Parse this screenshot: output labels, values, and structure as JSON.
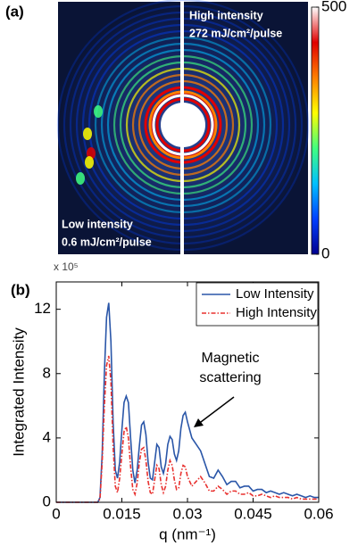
{
  "chart_data": [
    {
      "type": "image",
      "label": "(a)",
      "annotations": [
        [
          "High intensity",
          "272 mJ/cm²/pulse"
        ],
        [
          "Low intensity",
          "0.6 mJ/cm²/pulse"
        ]
      ],
      "clim": [
        0,
        500
      ],
      "cticks": [
        0,
        500
      ],
      "colormap": [
        "#00008f",
        "#0040ff",
        "#00c0ff",
        "#40ff80",
        "#ffff00",
        "#ff8000",
        "#e00000",
        "#ffffff"
      ]
    },
    {
      "type": "line",
      "label": "(b)",
      "multiplier": "x 10⁵",
      "ylabel": "Integrated Intensity",
      "xlabel": "q (nm⁻¹)",
      "annotation": [
        "Magnetic",
        "scattering"
      ],
      "xlim": [
        0,
        0.06
      ],
      "xticks": [
        0,
        0.015,
        0.03,
        0.045,
        0.06
      ],
      "ylim": [
        0,
        13.7
      ],
      "yticks": [
        0,
        4,
        8,
        12
      ],
      "legend": "upper right",
      "x": [
        0,
        0.005,
        0.009,
        0.0095,
        0.01,
        0.0105,
        0.011,
        0.0115,
        0.012,
        0.0125,
        0.013,
        0.0135,
        0.014,
        0.0145,
        0.015,
        0.0155,
        0.016,
        0.0165,
        0.017,
        0.0175,
        0.018,
        0.0185,
        0.019,
        0.0195,
        0.02,
        0.0205,
        0.021,
        0.0215,
        0.022,
        0.0225,
        0.023,
        0.0235,
        0.024,
        0.0245,
        0.025,
        0.0255,
        0.026,
        0.0265,
        0.027,
        0.0275,
        0.028,
        0.0285,
        0.029,
        0.0295,
        0.03,
        0.031,
        0.032,
        0.033,
        0.034,
        0.035,
        0.036,
        0.037,
        0.038,
        0.039,
        0.04,
        0.041,
        0.042,
        0.043,
        0.044,
        0.045,
        0.046,
        0.047,
        0.048,
        0.049,
        0.05,
        0.051,
        0.052,
        0.053,
        0.054,
        0.055,
        0.056,
        0.057,
        0.058,
        0.059,
        0.06
      ],
      "series": [
        {
          "name": "Low Intensity",
          "color": "#2a56a8",
          "dash": "none",
          "values": [
            0,
            0,
            0,
            0,
            0.3,
            3,
            8,
            11.5,
            12.4,
            10,
            5,
            2,
            1.5,
            2.5,
            4.5,
            6.2,
            6.6,
            6.2,
            4,
            2,
            1.2,
            2,
            3.5,
            4.8,
            5.0,
            4.2,
            2.5,
            1.5,
            1.4,
            2.5,
            3.6,
            3.4,
            2.2,
            1.8,
            2.4,
            3.6,
            4.1,
            3.9,
            3.0,
            2.6,
            3.2,
            4.6,
            5.4,
            5.6,
            5.0,
            4.0,
            3.6,
            3.2,
            2.4,
            1.6,
            1.5,
            2.0,
            1.6,
            1.1,
            1.3,
            1.3,
            0.9,
            1.0,
            1.0,
            0.7,
            0.8,
            0.8,
            0.6,
            0.7,
            0.6,
            0.5,
            0.6,
            0.5,
            0.4,
            0.5,
            0.4,
            0.3,
            0.4,
            0.3,
            0.3
          ]
        },
        {
          "name": "High Intensity",
          "color": "#e8312f",
          "dash": "5 2 1.5 2",
          "values": [
            0,
            0,
            0,
            0,
            0.2,
            2.5,
            6,
            8.5,
            9.1,
            7.5,
            3.5,
            1,
            0.6,
            1.5,
            3,
            4.4,
            4.7,
            4,
            2.2,
            0.8,
            0.5,
            1.2,
            2.5,
            3.3,
            3.4,
            2.6,
            1.3,
            0.6,
            0.5,
            1.4,
            2.3,
            2.1,
            1.1,
            0.6,
            1.0,
            2.0,
            2.6,
            2.3,
            1.4,
            0.8,
            0.9,
            1.8,
            2.3,
            2.2,
            1.6,
            1.0,
            1.3,
            1.6,
            1.2,
            0.7,
            0.7,
            1.0,
            0.8,
            0.5,
            0.7,
            0.7,
            0.5,
            0.5,
            0.6,
            0.4,
            0.4,
            0.5,
            0.4,
            0.3,
            0.4,
            0.3,
            0.3,
            0.3,
            0.2,
            0.3,
            0.2,
            0.2,
            0.2,
            0.2,
            0.2
          ]
        }
      ]
    }
  ]
}
